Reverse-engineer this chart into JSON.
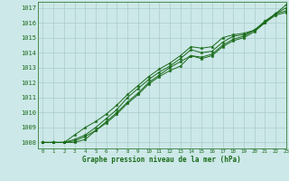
{
  "title": "Graphe pression niveau de la mer (hPa)",
  "bg_color": "#cce8e8",
  "grid_color": "#aacccc",
  "line_color": "#1a6b1a",
  "xlim": [
    -0.5,
    23
  ],
  "ylim": [
    1007.6,
    1017.4
  ],
  "yticks": [
    1008,
    1009,
    1010,
    1011,
    1012,
    1013,
    1014,
    1015,
    1016,
    1017
  ],
  "xticks": [
    0,
    1,
    2,
    3,
    4,
    5,
    6,
    7,
    8,
    9,
    10,
    11,
    12,
    13,
    14,
    15,
    16,
    17,
    18,
    19,
    20,
    21,
    22,
    23
  ],
  "series": [
    [
      1008.0,
      1008.0,
      1008.0,
      1008.1,
      1008.4,
      1008.8,
      1009.3,
      1009.9,
      1010.6,
      1011.2,
      1011.9,
      1012.4,
      1012.8,
      1013.1,
      1013.8,
      1013.6,
      1013.8,
      1014.4,
      1014.8,
      1015.0,
      1015.4,
      1016.0,
      1016.6,
      1016.8
    ],
    [
      1008.0,
      1008.0,
      1008.0,
      1008.0,
      1008.2,
      1008.8,
      1009.4,
      1010.0,
      1010.7,
      1011.3,
      1012.0,
      1012.5,
      1013.0,
      1013.4,
      1013.8,
      1013.7,
      1013.9,
      1014.5,
      1014.9,
      1015.1,
      1015.5,
      1016.0,
      1016.5,
      1016.7
    ],
    [
      1008.0,
      1008.0,
      1008.0,
      1008.5,
      1009.0,
      1009.4,
      1009.9,
      1010.5,
      1011.2,
      1011.8,
      1012.4,
      1012.9,
      1013.3,
      1013.8,
      1014.4,
      1014.3,
      1014.4,
      1015.0,
      1015.2,
      1015.3,
      1015.5,
      1016.1,
      1016.6,
      1017.0
    ],
    [
      1008.0,
      1008.0,
      1008.0,
      1008.2,
      1008.5,
      1009.0,
      1009.6,
      1010.2,
      1011.0,
      1011.6,
      1012.2,
      1012.7,
      1013.1,
      1013.6,
      1014.2,
      1014.0,
      1014.1,
      1014.7,
      1015.1,
      1015.2,
      1015.5,
      1016.1,
      1016.6,
      1017.2
    ]
  ]
}
